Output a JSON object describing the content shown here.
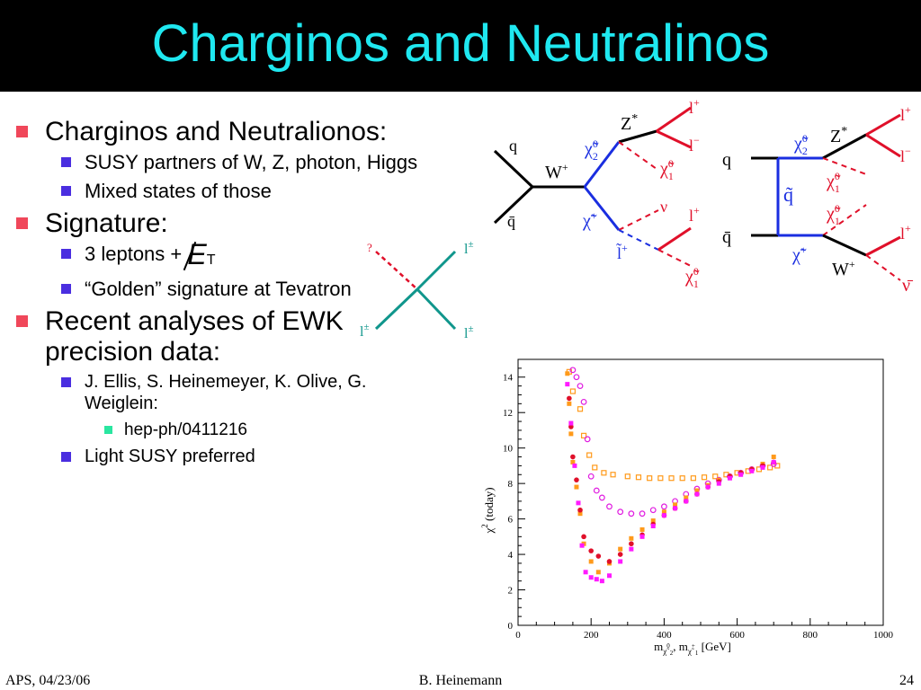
{
  "slide": {
    "title": "Charginos and Neutralinos",
    "bullets": [
      {
        "level": 1,
        "text": "Charginos and Neutralionos:"
      },
      {
        "level": 2,
        "text": "SUSY partners of W, Z, photon, Higgs"
      },
      {
        "level": 2,
        "text": "Mixed states of those"
      },
      {
        "level": 1,
        "text": "Signature:"
      },
      {
        "level": 2,
        "text": "3 leptons + "
      },
      {
        "level": 2,
        "text": "“Golden” signature at Tevatron"
      },
      {
        "level": 1,
        "text": "Recent analyses of EWK precision data:"
      },
      {
        "level": 3,
        "text": "J. Ellis, S. Heinemeyer, K. Olive, G. Weiglein:"
      },
      {
        "level": 4,
        "text": "hep-ph/0411216"
      },
      {
        "level": 3,
        "text": "Light SUSY preferred"
      }
    ],
    "met_symbol": "E",
    "met_sub": "T"
  },
  "diagrams": {
    "left": {
      "q": "q",
      "qbar": "q̄",
      "w": "W",
      "w_sup": "+",
      "chi2": "χ̃",
      "chi2_sup": "0",
      "chi2_sub": "2",
      "z": "Z",
      "z_sup": "*",
      "lp": "l",
      "lp_sup": "+",
      "lm": "l",
      "lm_sup": "−",
      "chi1": "χ̃",
      "chi1_sup": "0",
      "chi1_sub": "1",
      "chip": "χ̃",
      "chip_sup": "+",
      "nu": "ν",
      "l2": "l",
      "l2_sup": "+",
      "slep": "l̃",
      "slep_sup": "+",
      "chi1b": "χ̃",
      "chi1b_sup": "0",
      "chi1b_sub": "1"
    },
    "right": {
      "q": "q",
      "qbar": "q̄",
      "squark": "q̃",
      "chi2": "χ̃",
      "chi2_sup": "0",
      "chi2_sub": "2",
      "z": "Z",
      "z_sup": "*",
      "lp": "l",
      "lp_sup": "+",
      "lm": "l",
      "lm_sup": "−",
      "chi1": "χ̃",
      "chi1_sup": "0",
      "chi1_sub": "1",
      "chi1b": "χ̃",
      "chi1b_sup": "0",
      "chi1b_sub": "1",
      "chip": "χ̃",
      "chip_sup": "+",
      "w": "W",
      "w_sup": "+",
      "l": "l",
      "l_sup": "+",
      "nubar": "ν̄"
    },
    "small": {
      "q": "?",
      "l_top": "l",
      "l_top_sup": "±",
      "l_left": "l",
      "l_left_sup": "±",
      "l_right": "l",
      "l_right_sup": "±"
    }
  },
  "chart_data": {
    "type": "scatter",
    "xlim": [
      0,
      1000
    ],
    "ylim": [
      0,
      15
    ],
    "xticks": [
      "0",
      "200",
      "400",
      "600",
      "800",
      "1000"
    ],
    "yticks": [
      "0",
      "2",
      "4",
      "6",
      "8",
      "10",
      "12",
      "14"
    ],
    "xlabel": "m",
    "xlabel_sub1": "χ̃",
    "xlabel_sub1_sup": "0",
    "xlabel_sub1_sub": "2",
    "xlabel_sep": ", m",
    "xlabel_sub2": "χ̃",
    "xlabel_sub2_sup": "+",
    "xlabel_sub2_sub": "1",
    "xlabel_unit": " [GeV]",
    "ylabel": "χ",
    "ylabel_sup": "2",
    "ylabel_rest": " (today)",
    "series": [
      {
        "color": "#ff9a1a",
        "style": "open-square",
        "x": [
          140,
          150,
          170,
          180,
          195,
          210,
          235,
          260,
          300,
          330,
          360,
          390,
          420,
          450,
          480,
          510,
          540,
          570,
          600,
          630,
          660,
          690,
          710
        ],
        "y": [
          14.3,
          13.2,
          12.2,
          10.7,
          9.6,
          8.9,
          8.6,
          8.5,
          8.4,
          8.35,
          8.3,
          8.3,
          8.3,
          8.3,
          8.3,
          8.35,
          8.4,
          8.5,
          8.6,
          8.7,
          8.8,
          8.9,
          9.0
        ]
      },
      {
        "color": "#e01ae0",
        "style": "open-circle",
        "x": [
          150,
          160,
          170,
          180,
          190,
          200,
          215,
          230,
          250,
          280,
          310,
          340,
          370,
          400,
          430,
          460,
          490,
          520,
          550,
          580,
          610,
          640,
          670,
          700
        ],
        "y": [
          14.4,
          14.0,
          13.5,
          12.6,
          10.5,
          8.4,
          7.6,
          7.2,
          6.7,
          6.4,
          6.3,
          6.3,
          6.5,
          6.7,
          7.0,
          7.4,
          7.7,
          8.0,
          8.2,
          8.4,
          8.6,
          8.8,
          9.0,
          9.1
        ]
      },
      {
        "color": "#ff9a1a",
        "style": "filled-square",
        "x": [
          135,
          140,
          145,
          150,
          160,
          170,
          180,
          200,
          220,
          250,
          280,
          310,
          340,
          370,
          400,
          430,
          460,
          490,
          520,
          550,
          580,
          610,
          640,
          670,
          700
        ],
        "y": [
          14.2,
          12.5,
          10.8,
          9.2,
          7.8,
          6.3,
          4.6,
          3.6,
          3.0,
          3.5,
          4.3,
          4.9,
          5.4,
          5.9,
          6.4,
          6.8,
          7.2,
          7.6,
          7.9,
          8.2,
          8.4,
          8.6,
          8.8,
          9.1,
          9.5
        ]
      },
      {
        "color": "#e0102a",
        "style": "filled-circle",
        "x": [
          140,
          145,
          150,
          160,
          170,
          180,
          200,
          220,
          250,
          280,
          310,
          340,
          370,
          400,
          430,
          460,
          490,
          520,
          550,
          580,
          610,
          640,
          670,
          700
        ],
        "y": [
          12.8,
          11.2,
          9.5,
          8.2,
          6.5,
          5.0,
          4.2,
          3.9,
          3.6,
          4.0,
          4.6,
          5.1,
          5.7,
          6.2,
          6.6,
          7.0,
          7.4,
          7.8,
          8.1,
          8.4,
          8.6,
          8.8,
          9.0,
          9.2
        ]
      },
      {
        "color": "#ff1aff",
        "style": "filled-square",
        "x": [
          135,
          145,
          155,
          165,
          175,
          185,
          200,
          215,
          230,
          250,
          280,
          310,
          340,
          370,
          400,
          430,
          460,
          490,
          520,
          550,
          580,
          610,
          640,
          670,
          700
        ],
        "y": [
          13.6,
          11.4,
          9.0,
          6.9,
          4.5,
          3.0,
          2.7,
          2.6,
          2.5,
          2.8,
          3.6,
          4.3,
          5.0,
          5.6,
          6.2,
          6.6,
          7.0,
          7.4,
          7.8,
          8.0,
          8.3,
          8.5,
          8.7,
          8.9,
          9.2
        ]
      }
    ]
  },
  "footer": {
    "left": "APS, 04/23/06",
    "center": "B. Heinemann",
    "right": "24"
  }
}
